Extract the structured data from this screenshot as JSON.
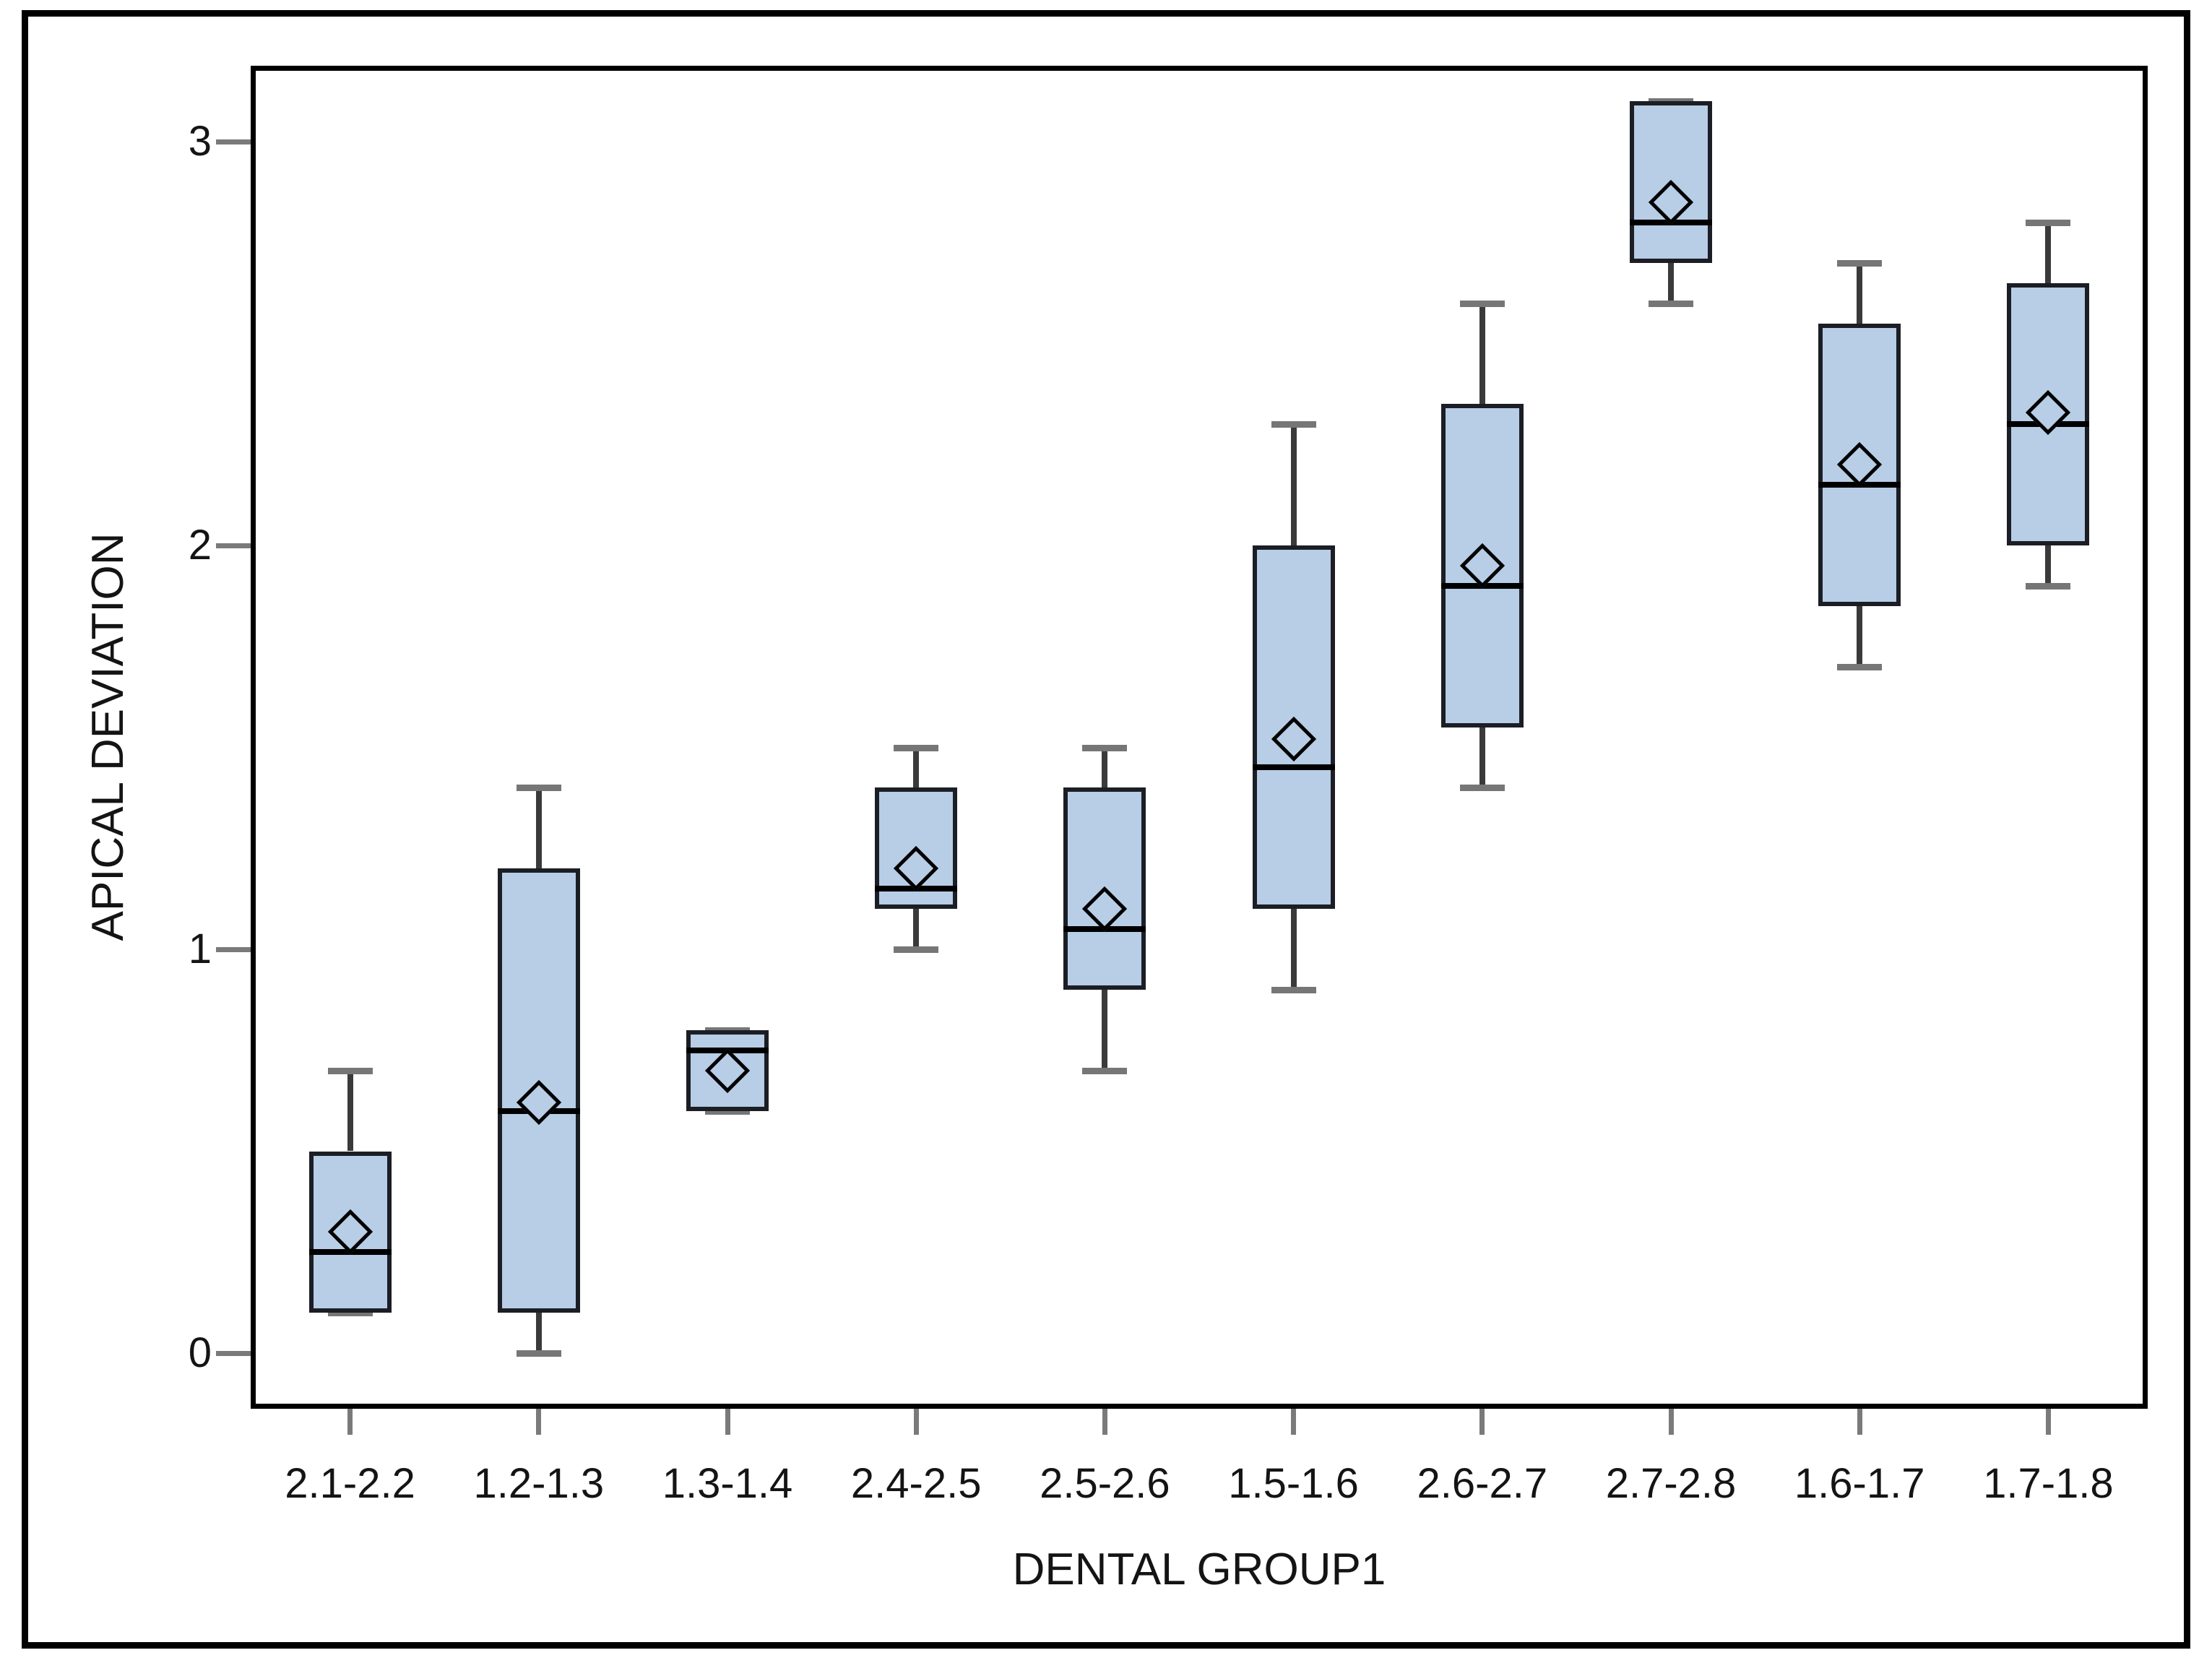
{
  "chart_data": {
    "type": "box",
    "title": "",
    "xlabel": "DENTAL GROUP1",
    "ylabel": "APICAL DEVIATION",
    "categories": [
      "2.1-2.2",
      "1.2-1.3",
      "1.3-1.4",
      "2.4-2.5",
      "2.5-2.6",
      "1.5-1.6",
      "2.6-2.7",
      "2.7-2.8",
      "1.6-1.7",
      "1.7-1.8"
    ],
    "y_ticks": [
      0,
      1,
      2,
      3
    ],
    "ylim": [
      -0.15,
      3.2
    ],
    "grid": false,
    "legend_position": "none",
    "series": [
      {
        "category": "2.1-2.2",
        "min": 0.1,
        "q1": 0.1,
        "median": 0.25,
        "mean": 0.3,
        "q3": 0.5,
        "max": 0.7
      },
      {
        "category": "1.2-1.3",
        "min": 0.0,
        "q1": 0.1,
        "median": 0.6,
        "mean": 0.62,
        "q3": 1.2,
        "max": 1.4
      },
      {
        "category": "1.3-1.4",
        "min": 0.6,
        "q1": 0.6,
        "median": 0.75,
        "mean": 0.7,
        "q3": 0.8,
        "max": 0.8
      },
      {
        "category": "2.4-2.5",
        "min": 1.0,
        "q1": 1.1,
        "median": 1.15,
        "mean": 1.2,
        "q3": 1.4,
        "max": 1.5
      },
      {
        "category": "2.5-2.6",
        "min": 0.7,
        "q1": 0.9,
        "median": 1.05,
        "mean": 1.1,
        "q3": 1.4,
        "max": 1.5
      },
      {
        "category": "1.5-1.6",
        "min": 0.9,
        "q1": 1.1,
        "median": 1.45,
        "mean": 1.52,
        "q3": 2.0,
        "max": 2.3
      },
      {
        "category": "2.6-2.7",
        "min": 1.4,
        "q1": 1.55,
        "median": 1.9,
        "mean": 1.95,
        "q3": 2.35,
        "max": 2.6
      },
      {
        "category": "2.7-2.8",
        "min": 2.6,
        "q1": 2.7,
        "median": 2.8,
        "mean": 2.85,
        "q3": 3.1,
        "max": 3.1
      },
      {
        "category": "1.6-1.7",
        "min": 1.7,
        "q1": 1.85,
        "median": 2.15,
        "mean": 2.2,
        "q3": 2.55,
        "max": 2.7
      },
      {
        "category": "1.7-1.8",
        "min": 1.9,
        "q1": 2.0,
        "median": 2.3,
        "mean": 2.33,
        "q3": 2.65,
        "max": 2.8
      }
    ],
    "colors": {
      "box_fill": "#b8cde6",
      "box_border": "#1b1e24",
      "median": "#000000",
      "whisker_stem": "#3a3a3a",
      "whisker_cap": "#767676",
      "diamond_border": "#000000",
      "frame": "#000000",
      "tick_mark": "#7a7a7a",
      "text": "#141414",
      "background": "#ffffff"
    }
  }
}
